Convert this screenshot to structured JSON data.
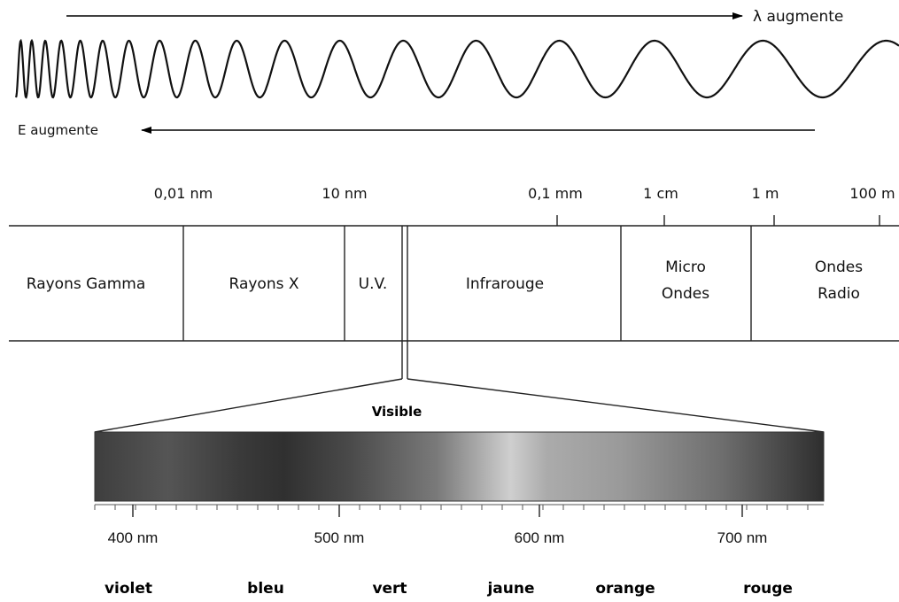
{
  "wave": {
    "lambda_label": "λ augmente",
    "energy_label": "E augmente"
  },
  "scale": {
    "ticks": [
      "0,01 nm",
      "10 nm",
      "0,1 mm",
      "1 cm",
      "1 m",
      "100 m"
    ]
  },
  "bands": [
    {
      "label": "Rayons Gamma"
    },
    {
      "label": "Rayons X"
    },
    {
      "label": "U.V."
    },
    {
      "label": "Infrarouge"
    },
    {
      "label_line1": "Micro",
      "label_line2": "Ondes"
    },
    {
      "label_line1": "Ondes",
      "label_line2": "Radio"
    }
  ],
  "visible": {
    "title": "Visible",
    "nm_ticks": [
      "400 nm",
      "500 nm",
      "600 nm",
      "700 nm"
    ],
    "colors": [
      "violet",
      "bleu",
      "vert",
      "jaune",
      "orange",
      "rouge"
    ]
  }
}
